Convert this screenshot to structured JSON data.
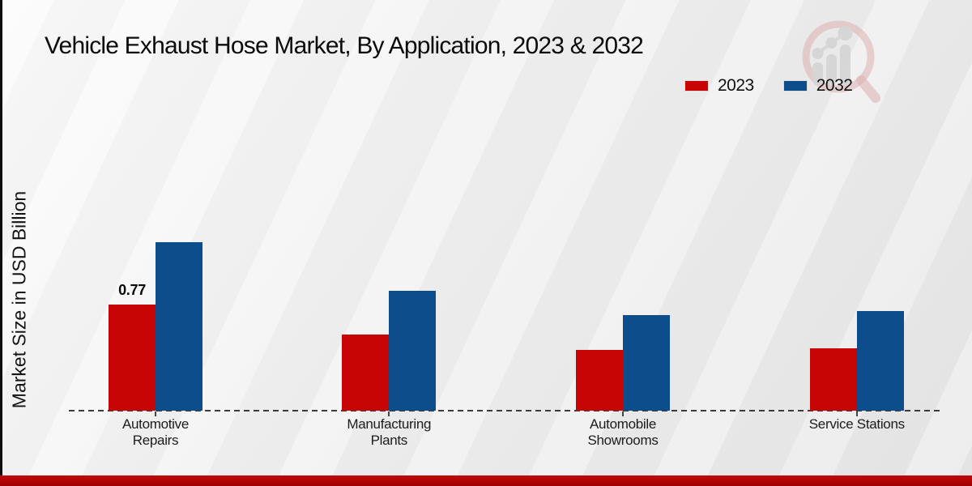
{
  "header": {
    "title": "Vehicle Exhaust Hose Market, By Application, 2023 & 2032"
  },
  "icons": {
    "watermark": "magnifier-bar-chart-logo"
  },
  "chart_data": {
    "type": "bar",
    "title": "Vehicle Exhaust Hose Market, By Application, 2023 & 2032",
    "xlabel": "",
    "ylabel": "Market Size in USD Billion",
    "categories": [
      "Automotive Repairs",
      "Manufacturing Plants",
      "Automobile Showrooms",
      "Service Stations"
    ],
    "series": [
      {
        "name": "2023",
        "color": "#c80505",
        "values": [
          0.77,
          0.55,
          0.44,
          0.45
        ]
      },
      {
        "name": "2032",
        "color": "#0d4d8c",
        "values": [
          1.22,
          0.87,
          0.69,
          0.72
        ]
      }
    ],
    "ylim": [
      0,
      1.4
    ],
    "grid": false,
    "y_axis_ticks_visible": false,
    "baseline_style": "dashed",
    "legend_position": "top-right",
    "annotations": [
      {
        "series": "2023",
        "category_index": 0,
        "text": "0.77"
      }
    ],
    "accent_colors": {
      "footer_band": "#b30404",
      "left_edge_bar": "#0d0d0d",
      "watermark_ring": "#ddb0b0",
      "watermark_bars": "#d6d6d6"
    }
  }
}
